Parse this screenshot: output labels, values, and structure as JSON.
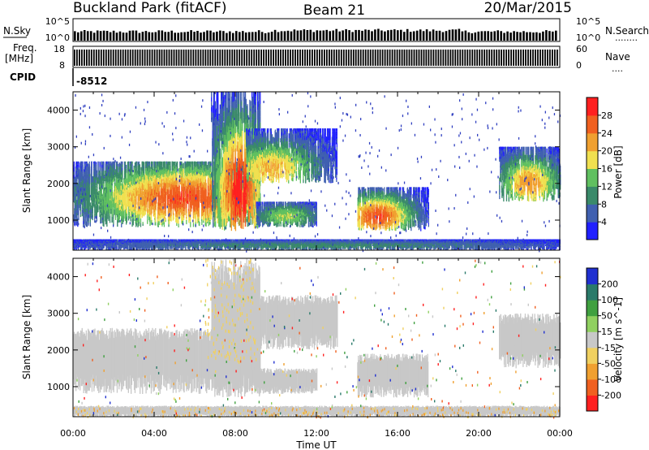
{
  "header": {
    "title": "Buckland Park (fitACF)",
    "beam": "Beam 21",
    "date": "20/Mar/2015"
  },
  "panels": {
    "nsky": {
      "label": "N.Sky",
      "ticks": [
        "10^5",
        "10^0"
      ],
      "right_ticks": [
        "10^5",
        "10^0"
      ],
      "right_label": "N.Search",
      "right_dots": "........"
    },
    "freq": {
      "label_line1": "Freq.",
      "label_line2": "[MHz]",
      "ticks": [
        "18",
        "8"
      ],
      "right_ticks": [
        "60",
        "0"
      ],
      "right_label": "Nave",
      "right_dots": "...."
    },
    "cpid": {
      "label": "CPID",
      "value": "-8512"
    }
  },
  "chart_data": [
    {
      "type": "heatmap",
      "title": "",
      "xlabel": "Time UT",
      "ylabel": "Slant Range [km]",
      "x_ticks": [
        "00:00",
        "04:00",
        "08:00",
        "12:00",
        "16:00",
        "20:00",
        "00:00"
      ],
      "y_ticks": [
        "1000",
        "2000",
        "3000",
        "4000"
      ],
      "ylim": [
        180,
        4500
      ],
      "colorbar": {
        "label": "Power [dB]",
        "ticks": [
          "4",
          "8",
          "12",
          "16",
          "20",
          "24",
          "28"
        ],
        "colors": [
          "#2020ff",
          "#4060b0",
          "#3a8a6a",
          "#60c060",
          "#f0e050",
          "#f0a030",
          "#f06020",
          "#ff2020"
        ]
      },
      "blobs": [
        {
          "t0": 0.0,
          "t1": 9.2,
          "r0": 800,
          "r1": 2600,
          "peak_t": 5.5,
          "peak_r": 1600,
          "level": 0.8
        },
        {
          "t0": 6.8,
          "t1": 9.2,
          "r0": 700,
          "r1": 4500,
          "peak_t": 8.2,
          "peak_r": 1800,
          "level": 0.9
        },
        {
          "t0": 8.5,
          "t1": 13.0,
          "r0": 2000,
          "r1": 3500,
          "peak_t": 9.8,
          "peak_r": 2400,
          "level": 0.6
        },
        {
          "t0": 9.0,
          "t1": 12.0,
          "r0": 800,
          "r1": 1500,
          "peak_t": 10.5,
          "peak_r": 1100,
          "level": 0.45
        },
        {
          "t0": 14.0,
          "t1": 17.5,
          "r0": 700,
          "r1": 1900,
          "peak_t": 15.0,
          "peak_r": 1100,
          "level": 0.8
        },
        {
          "t0": 21.0,
          "t1": 24.0,
          "r0": 1500,
          "r1": 3000,
          "peak_t": 22.5,
          "peak_r": 2000,
          "level": 0.65
        },
        {
          "t0": 0.0,
          "t1": 24.0,
          "r0": 180,
          "r1": 480,
          "peak_t": 12,
          "peak_r": 300,
          "level": 0.25
        }
      ]
    },
    {
      "type": "heatmap",
      "title": "",
      "xlabel": "Time UT",
      "ylabel": "Slant Range [km]",
      "x_ticks": [
        "00:00",
        "04:00",
        "08:00",
        "12:00",
        "16:00",
        "20:00",
        "00:00"
      ],
      "y_ticks": [
        "1000",
        "2000",
        "3000",
        "4000"
      ],
      "ylim": [
        180,
        4500
      ],
      "colorbar": {
        "label": "Velocity [m s^-1]",
        "ticks": [
          "200",
          "100",
          "50",
          "15",
          "-15",
          "-50",
          "-100",
          "-200"
        ],
        "colors": [
          "#2030d0",
          "#2a7a6a",
          "#40a040",
          "#90d060",
          "#c8c8c8",
          "#f0d060",
          "#f0a030",
          "#f06020",
          "#ff2020"
        ]
      }
    }
  ]
}
